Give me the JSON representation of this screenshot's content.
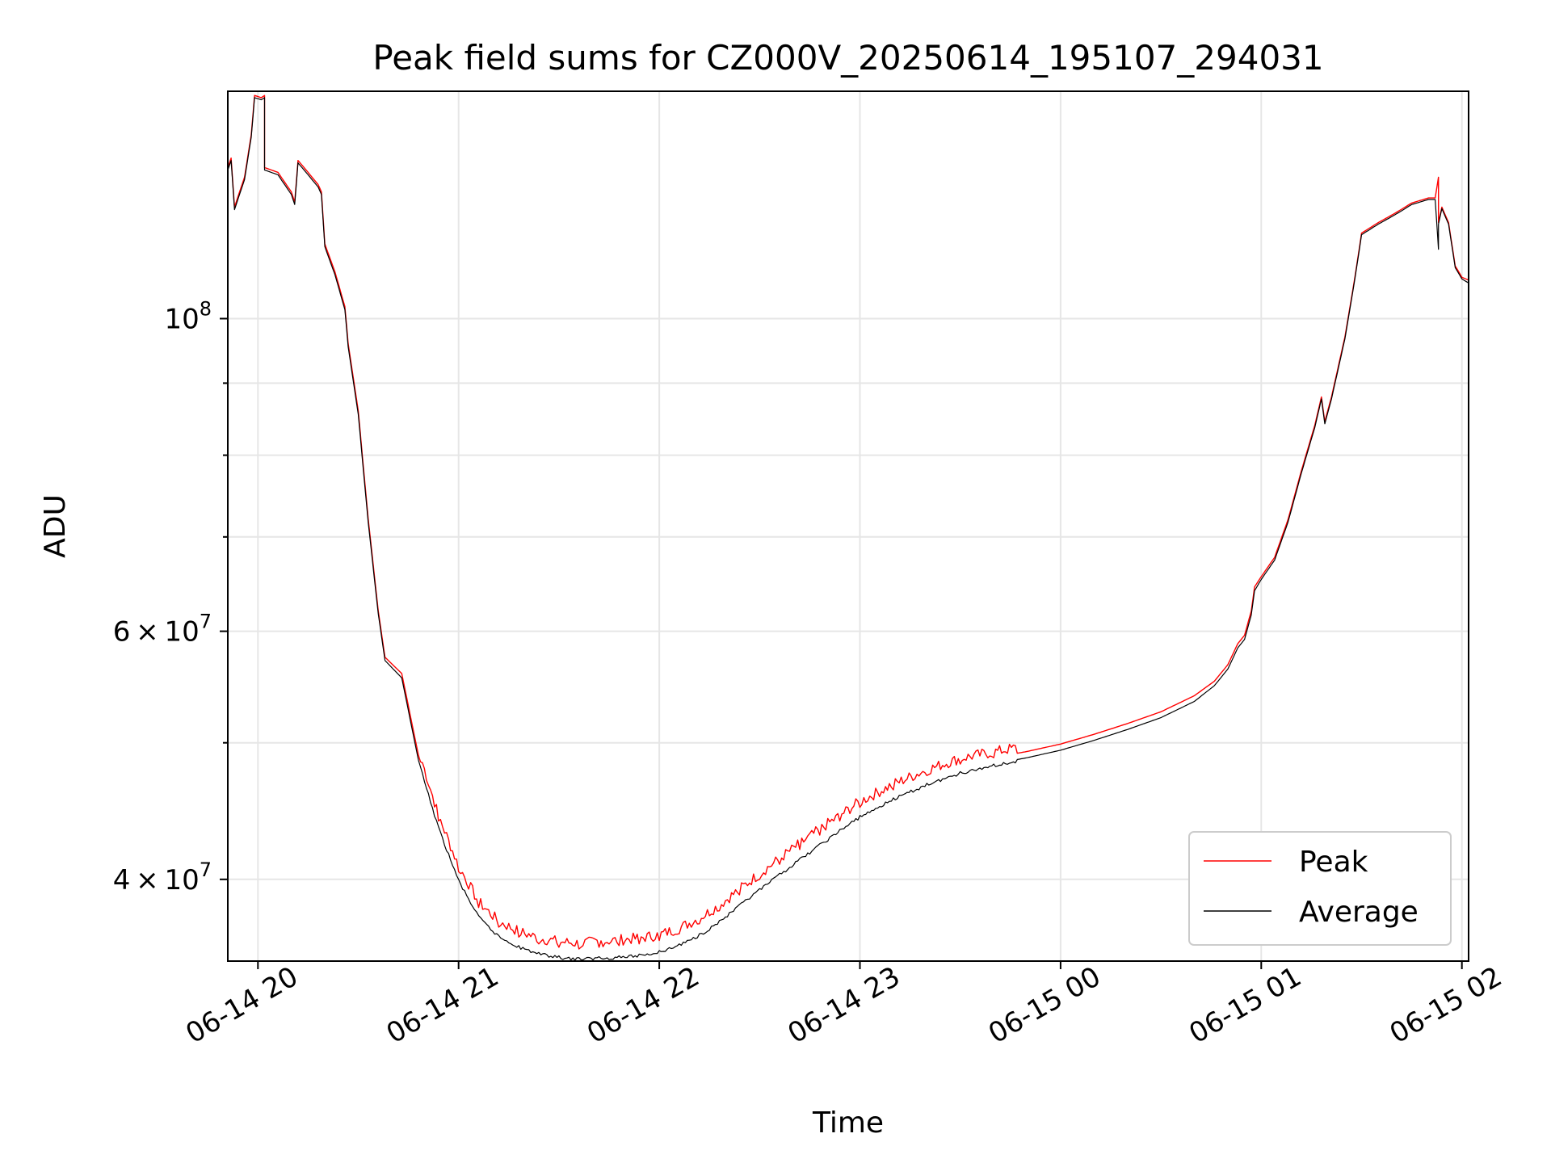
{
  "chart_data": {
    "type": "line",
    "title": "Peak field sums for CZ000V_20250614_195107_294031",
    "xlabel": "Time",
    "ylabel": "ADU",
    "y_scale": "log",
    "ylim": [
      35000000,
      145000000
    ],
    "xlim": [
      "2025-06-14 19:51",
      "2025-06-15 02:02"
    ],
    "grid": true,
    "legend_position": "lower right",
    "x_ticks": [
      {
        "t": "2025-06-14 20:00",
        "label": "06-14 20"
      },
      {
        "t": "2025-06-14 21:00",
        "label": "06-14 21"
      },
      {
        "t": "2025-06-14 22:00",
        "label": "06-14 22"
      },
      {
        "t": "2025-06-14 23:00",
        "label": "06-14 23"
      },
      {
        "t": "2025-06-15 00:00",
        "label": "06-15 00"
      },
      {
        "t": "2025-06-15 01:00",
        "label": "06-15 01"
      },
      {
        "t": "2025-06-15 02:00",
        "label": "06-15 02"
      }
    ],
    "y_ticks": [
      {
        "value": 40000000,
        "mantissa": "4",
        "exponent": "7"
      },
      {
        "value": 60000000,
        "mantissa": "6",
        "exponent": "7"
      },
      {
        "value": 100000000,
        "mantissa": "",
        "exponent": "8"
      }
    ],
    "y_minor_ticks": [
      50000000,
      70000000,
      80000000,
      90000000
    ],
    "series": [
      {
        "name": "Peak",
        "color": "#ff0000",
        "points": [
          [
            "2025-06-14 19:51",
            128000000
          ],
          [
            "2025-06-14 19:52",
            130000000
          ],
          [
            "2025-06-14 19:53",
            120000000
          ],
          [
            "2025-06-14 19:56",
            126000000
          ],
          [
            "2025-06-14 19:58",
            135000000
          ],
          [
            "2025-06-14 19:59",
            144000000
          ],
          [
            "2025-06-14 20:01",
            143500000
          ],
          [
            "2025-06-14 20:02",
            144000000
          ],
          [
            "2025-06-14 20:02",
            128000000
          ],
          [
            "2025-06-14 20:06",
            127000000
          ],
          [
            "2025-06-14 20:10",
            123000000
          ],
          [
            "2025-06-14 20:11",
            121000000
          ],
          [
            "2025-06-14 20:12",
            129500000
          ],
          [
            "2025-06-14 20:15",
            127000000
          ],
          [
            "2025-06-14 20:18",
            124500000
          ],
          [
            "2025-06-14 20:19",
            123000000
          ],
          [
            "2025-06-14 20:20",
            113000000
          ],
          [
            "2025-06-14 20:23",
            108000000
          ],
          [
            "2025-06-14 20:26",
            102000000
          ],
          [
            "2025-06-14 20:27",
            96000000
          ],
          [
            "2025-06-14 20:30",
            86000000
          ],
          [
            "2025-06-14 20:33",
            72000000
          ],
          [
            "2025-06-14 20:36",
            62000000
          ],
          [
            "2025-06-14 20:38",
            57500000
          ],
          [
            "2025-06-14 20:43",
            56000000
          ],
          [
            "2025-06-14 20:48",
            49000000
          ],
          [
            "2025-06-14 20:54",
            44000000
          ],
          [
            "2025-06-14 21:00",
            40500000
          ],
          [
            "2025-06-14 21:06",
            38200000
          ],
          [
            "2025-06-14 21:12",
            37000000
          ],
          [
            "2025-06-14 21:18",
            36400000
          ],
          [
            "2025-06-14 21:24",
            36000000
          ],
          [
            "2025-06-14 21:30",
            35800000
          ],
          [
            "2025-06-14 21:36",
            35700000
          ],
          [
            "2025-06-14 21:42",
            35800000
          ],
          [
            "2025-06-14 21:48",
            35900000
          ],
          [
            "2025-06-14 21:54",
            36000000
          ],
          [
            "2025-06-14 22:00",
            36200000
          ],
          [
            "2025-06-14 22:06",
            36600000
          ],
          [
            "2025-06-14 22:12",
            37200000
          ],
          [
            "2025-06-14 22:18",
            38000000
          ],
          [
            "2025-06-14 22:24",
            39000000
          ],
          [
            "2025-06-14 22:30",
            40000000
          ],
          [
            "2025-06-14 22:36",
            41000000
          ],
          [
            "2025-06-14 22:42",
            42000000
          ],
          [
            "2025-06-14 22:48",
            43000000
          ],
          [
            "2025-06-14 22:54",
            44000000
          ],
          [
            "2025-06-14 23:00",
            45000000
          ],
          [
            "2025-06-14 23:10",
            46300000
          ],
          [
            "2025-06-14 23:20",
            47400000
          ],
          [
            "2025-06-14 23:30",
            48300000
          ],
          [
            "2025-06-14 23:40",
            48800000
          ],
          [
            "2025-06-14 23:50",
            49300000
          ],
          [
            "2025-06-15 00:00",
            49900000
          ],
          [
            "2025-06-15 00:10",
            50700000
          ],
          [
            "2025-06-15 00:20",
            51600000
          ],
          [
            "2025-06-15 00:30",
            52600000
          ],
          [
            "2025-06-15 00:40",
            54000000
          ],
          [
            "2025-06-15 00:46",
            55300000
          ],
          [
            "2025-06-15 00:50",
            56800000
          ],
          [
            "2025-06-15 00:53",
            58800000
          ],
          [
            "2025-06-15 00:55",
            59600000
          ],
          [
            "2025-06-15 00:57",
            62000000
          ],
          [
            "2025-06-15 00:58",
            64500000
          ],
          [
            "2025-06-15 01:00",
            65600000
          ],
          [
            "2025-06-15 01:04",
            67700000
          ],
          [
            "2025-06-15 01:08",
            72000000
          ],
          [
            "2025-06-15 01:12",
            78000000
          ],
          [
            "2025-06-15 01:16",
            84000000
          ],
          [
            "2025-06-15 01:18",
            88000000
          ],
          [
            "2025-06-15 01:19",
            84500000
          ],
          [
            "2025-06-15 01:21",
            88000000
          ],
          [
            "2025-06-15 01:25",
            97000000
          ],
          [
            "2025-06-15 01:28",
            107000000
          ],
          [
            "2025-06-15 01:30",
            115000000
          ],
          [
            "2025-06-15 01:35",
            117000000
          ],
          [
            "2025-06-15 01:40",
            118800000
          ],
          [
            "2025-06-15 01:45",
            120800000
          ],
          [
            "2025-06-15 01:50",
            121800000
          ],
          [
            "2025-06-15 01:52",
            121800000
          ],
          [
            "2025-06-15 01:53",
            126000000
          ],
          [
            "2025-06-15 01:53",
            117000000
          ],
          [
            "2025-06-15 01:54",
            120000000
          ],
          [
            "2025-06-15 01:56",
            117000000
          ],
          [
            "2025-06-15 01:58",
            109000000
          ],
          [
            "2025-06-15 02:00",
            107000000
          ],
          [
            "2025-06-15 02:02",
            106500000
          ]
        ]
      },
      {
        "name": "Average",
        "color": "#000000",
        "points": [
          [
            "2025-06-14 19:51",
            127500000
          ],
          [
            "2025-06-14 19:52",
            129500000
          ],
          [
            "2025-06-14 19:53",
            119500000
          ],
          [
            "2025-06-14 19:56",
            125500000
          ],
          [
            "2025-06-14 19:58",
            134500000
          ],
          [
            "2025-06-14 19:59",
            143500000
          ],
          [
            "2025-06-14 20:01",
            143000000
          ],
          [
            "2025-06-14 20:02",
            143500000
          ],
          [
            "2025-06-14 20:02",
            127500000
          ],
          [
            "2025-06-14 20:06",
            126500000
          ],
          [
            "2025-06-14 20:10",
            122500000
          ],
          [
            "2025-06-14 20:11",
            120500000
          ],
          [
            "2025-06-14 20:12",
            129000000
          ],
          [
            "2025-06-14 20:15",
            126500000
          ],
          [
            "2025-06-14 20:18",
            124000000
          ],
          [
            "2025-06-14 20:19",
            122500000
          ],
          [
            "2025-06-14 20:20",
            112500000
          ],
          [
            "2025-06-14 20:23",
            107500000
          ],
          [
            "2025-06-14 20:26",
            101500000
          ],
          [
            "2025-06-14 20:27",
            95500000
          ],
          [
            "2025-06-14 20:30",
            85500000
          ],
          [
            "2025-06-14 20:33",
            71600000
          ],
          [
            "2025-06-14 20:36",
            61700000
          ],
          [
            "2025-06-14 20:38",
            57200000
          ],
          [
            "2025-06-14 20:43",
            55600000
          ],
          [
            "2025-06-14 20:48",
            48600000
          ],
          [
            "2025-06-14 20:54",
            43600000
          ],
          [
            "2025-06-14 21:00",
            40000000
          ],
          [
            "2025-06-14 21:06",
            37700000
          ],
          [
            "2025-06-14 21:12",
            36500000
          ],
          [
            "2025-06-14 21:18",
            35900000
          ],
          [
            "2025-06-14 21:24",
            35500000
          ],
          [
            "2025-06-14 21:30",
            35300000
          ],
          [
            "2025-06-14 21:36",
            35200000
          ],
          [
            "2025-06-14 21:42",
            35250000
          ],
          [
            "2025-06-14 21:48",
            35300000
          ],
          [
            "2025-06-14 21:54",
            35400000
          ],
          [
            "2025-06-14 22:00",
            35600000
          ],
          [
            "2025-06-14 22:06",
            36000000
          ],
          [
            "2025-06-14 22:12",
            36600000
          ],
          [
            "2025-06-14 22:18",
            37400000
          ],
          [
            "2025-06-14 22:24",
            38400000
          ],
          [
            "2025-06-14 22:30",
            39400000
          ],
          [
            "2025-06-14 22:36",
            40400000
          ],
          [
            "2025-06-14 22:42",
            41400000
          ],
          [
            "2025-06-14 22:48",
            42400000
          ],
          [
            "2025-06-14 22:54",
            43400000
          ],
          [
            "2025-06-14 23:00",
            44400000
          ],
          [
            "2025-06-14 23:10",
            45700000
          ],
          [
            "2025-06-14 23:20",
            46800000
          ],
          [
            "2025-06-14 23:30",
            47700000
          ],
          [
            "2025-06-14 23:40",
            48300000
          ],
          [
            "2025-06-14 23:50",
            48800000
          ],
          [
            "2025-06-15 00:00",
            49400000
          ],
          [
            "2025-06-15 00:10",
            50200000
          ],
          [
            "2025-06-15 00:20",
            51100000
          ],
          [
            "2025-06-15 00:30",
            52100000
          ],
          [
            "2025-06-15 00:40",
            53500000
          ],
          [
            "2025-06-15 00:46",
            54900000
          ],
          [
            "2025-06-15 00:50",
            56400000
          ],
          [
            "2025-06-15 00:53",
            58400000
          ],
          [
            "2025-06-15 00:55",
            59200000
          ],
          [
            "2025-06-15 00:57",
            61600000
          ],
          [
            "2025-06-15 00:58",
            64100000
          ],
          [
            "2025-06-15 01:00",
            65300000
          ],
          [
            "2025-06-15 01:04",
            67400000
          ],
          [
            "2025-06-15 01:08",
            71700000
          ],
          [
            "2025-06-15 01:12",
            77700000
          ],
          [
            "2025-06-15 01:16",
            83700000
          ],
          [
            "2025-06-15 01:18",
            87700000
          ],
          [
            "2025-06-15 01:19",
            84200000
          ],
          [
            "2025-06-15 01:21",
            87700000
          ],
          [
            "2025-06-15 01:25",
            96700000
          ],
          [
            "2025-06-15 01:28",
            106700000
          ],
          [
            "2025-06-15 01:30",
            114700000
          ],
          [
            "2025-06-15 01:35",
            116700000
          ],
          [
            "2025-06-15 01:40",
            118500000
          ],
          [
            "2025-06-15 01:45",
            120500000
          ],
          [
            "2025-06-15 01:50",
            121500000
          ],
          [
            "2025-06-15 01:52",
            121500000
          ],
          [
            "2025-06-15 01:53",
            112000000
          ],
          [
            "2025-06-15 01:53",
            116700000
          ],
          [
            "2025-06-15 01:54",
            119700000
          ],
          [
            "2025-06-15 01:56",
            116700000
          ],
          [
            "2025-06-15 01:58",
            108700000
          ],
          [
            "2025-06-15 02:00",
            106700000
          ],
          [
            "2025-06-15 02:02",
            106000000
          ]
        ]
      }
    ]
  }
}
